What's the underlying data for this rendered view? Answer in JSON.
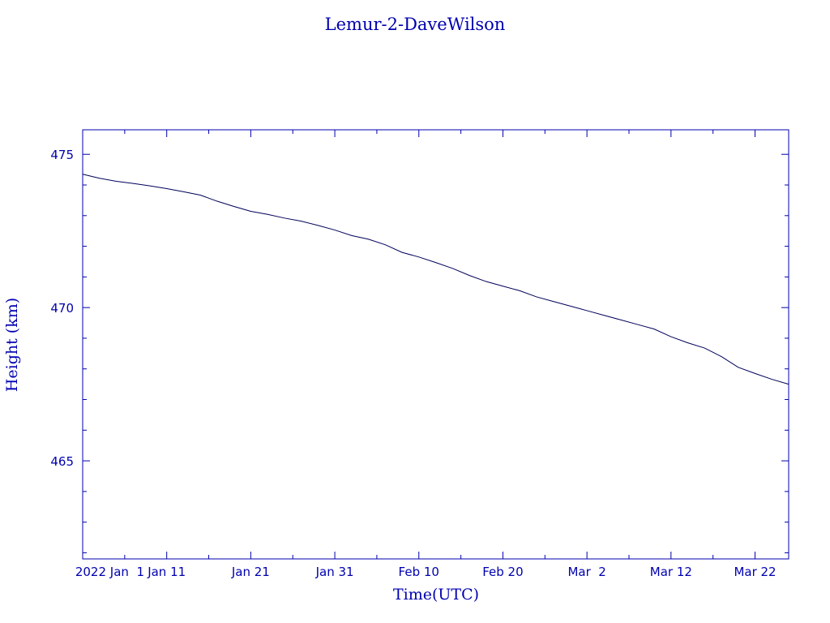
{
  "chart_data": {
    "type": "line",
    "title": "Lemur-2-DaveWilson",
    "xlabel": "Time(UTC)",
    "ylabel": "Height (km)",
    "x_tick_labels": [
      "2022 Jan  1",
      "Jan 11",
      "Jan 21",
      "Jan 31",
      "Feb 10",
      "Feb 20",
      "Mar  2",
      "Mar 12",
      "Mar 22"
    ],
    "y_tick_labels": [
      "465",
      "470",
      "475"
    ],
    "xlim": [
      "2022-01-01",
      "2022-03-26"
    ],
    "ylim": [
      461.8,
      475.8
    ],
    "y_ticks": [
      465,
      470,
      475
    ],
    "line_color": "#00005a",
    "axis_color": "#0000b0",
    "series": [
      {
        "x": [
          "2022-01-01",
          "2022-01-03",
          "2022-01-05",
          "2022-01-07",
          "2022-01-09",
          "2022-01-11",
          "2022-01-13",
          "2022-01-15",
          "2022-01-17",
          "2022-01-19",
          "2022-01-21",
          "2022-01-23",
          "2022-01-25",
          "2022-01-27",
          "2022-01-29",
          "2022-01-31",
          "2022-02-02",
          "2022-02-04",
          "2022-02-06",
          "2022-02-08",
          "2022-02-10",
          "2022-02-12",
          "2022-02-14",
          "2022-02-16",
          "2022-02-18",
          "2022-02-20",
          "2022-02-22",
          "2022-02-24",
          "2022-02-26",
          "2022-02-28",
          "2022-03-02",
          "2022-03-04",
          "2022-03-06",
          "2022-03-08",
          "2022-03-10",
          "2022-03-12",
          "2022-03-14",
          "2022-03-16",
          "2022-03-18",
          "2022-03-20",
          "2022-03-22",
          "2022-03-24",
          "2022-03-26"
        ],
        "y": [
          474.35,
          474.22,
          474.12,
          474.05,
          473.97,
          473.88,
          473.78,
          473.67,
          473.47,
          473.3,
          473.14,
          473.04,
          472.92,
          472.82,
          472.68,
          472.53,
          472.35,
          472.23,
          472.05,
          471.8,
          471.65,
          471.47,
          471.28,
          471.05,
          470.85,
          470.7,
          470.55,
          470.35,
          470.2,
          470.05,
          469.9,
          469.75,
          469.6,
          469.45,
          469.3,
          469.05,
          468.85,
          468.68,
          468.4,
          468.05,
          467.85,
          467.66,
          467.5
        ]
      }
    ]
  }
}
